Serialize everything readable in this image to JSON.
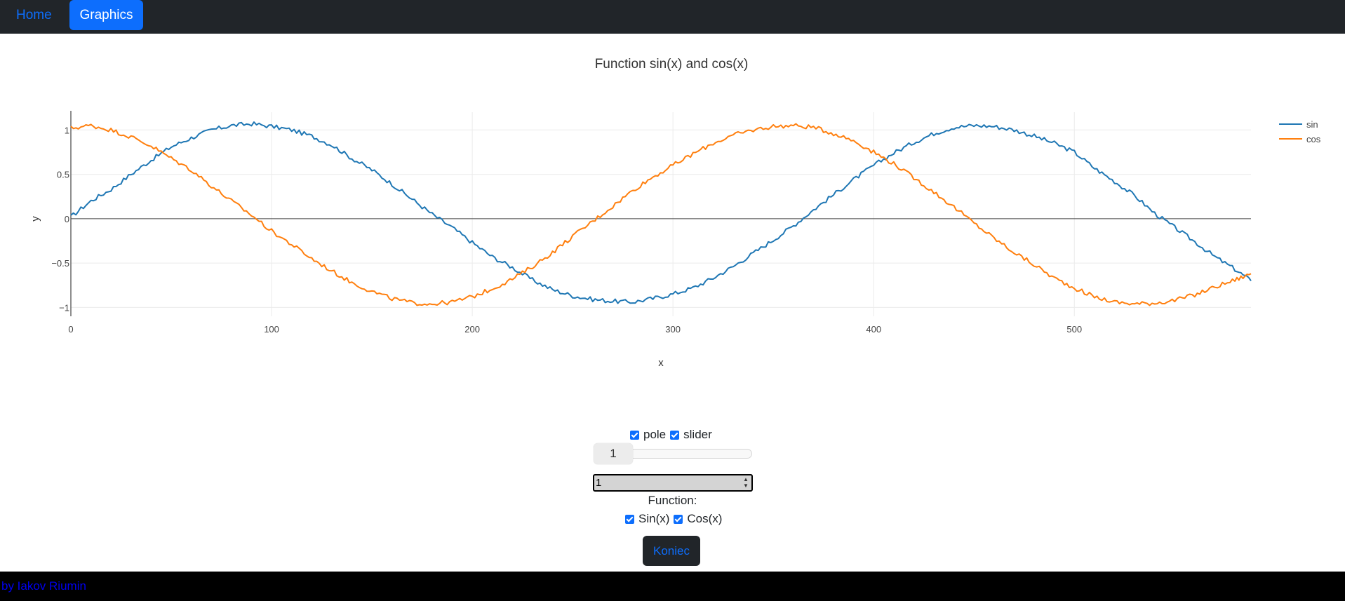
{
  "nav": {
    "home_label": "Home",
    "graphics_label": "Graphics"
  },
  "chart_data": {
    "type": "line",
    "title": "Function sin(x) and cos(x)",
    "xlabel": "x",
    "ylabel": "y",
    "xlim": [
      0,
      588
    ],
    "ylim": [
      -1.1,
      1.2
    ],
    "x_ticks": [
      "0",
      "100",
      "200",
      "300",
      "400",
      "500"
    ],
    "y_ticks": [
      "1",
      "0.5",
      "0",
      "−0.5",
      "−1"
    ],
    "grid": true,
    "legend_position": "top-right",
    "series": [
      {
        "name": "sin",
        "color": "#1f77b4",
        "x": [
          0,
          10,
          20,
          30,
          40,
          50,
          60,
          70,
          80,
          90,
          100,
          110,
          120,
          130,
          140,
          150,
          160,
          170,
          180,
          190,
          200,
          210,
          220,
          230,
          240,
          250,
          260,
          270,
          280,
          290,
          300,
          310,
          320,
          330,
          340,
          350,
          360,
          370,
          380,
          390,
          400,
          410,
          420,
          430,
          440,
          450,
          460,
          470,
          480,
          490,
          500,
          510,
          520,
          530,
          540,
          550,
          560,
          570,
          580,
          588
        ],
        "y": [
          0.02,
          0.2,
          0.33,
          0.5,
          0.66,
          0.81,
          0.91,
          1.0,
          1.05,
          1.07,
          1.04,
          1.0,
          0.93,
          0.83,
          0.68,
          0.55,
          0.39,
          0.22,
          0.05,
          -0.1,
          -0.27,
          -0.43,
          -0.55,
          -0.69,
          -0.8,
          -0.87,
          -0.91,
          -0.93,
          -0.94,
          -0.9,
          -0.85,
          -0.78,
          -0.67,
          -0.54,
          -0.39,
          -0.24,
          -0.08,
          0.1,
          0.27,
          0.44,
          0.6,
          0.74,
          0.86,
          0.96,
          1.03,
          1.05,
          1.04,
          1.0,
          0.93,
          0.85,
          0.75,
          0.57,
          0.42,
          0.26,
          0.06,
          -0.1,
          -0.26,
          -0.43,
          -0.57,
          -0.7
        ]
      },
      {
        "name": "cos",
        "color": "#ff7f0e",
        "x": [
          0,
          10,
          20,
          30,
          40,
          50,
          60,
          70,
          80,
          90,
          100,
          110,
          120,
          130,
          140,
          150,
          160,
          170,
          180,
          190,
          200,
          210,
          220,
          230,
          240,
          250,
          260,
          270,
          280,
          290,
          300,
          310,
          320,
          330,
          340,
          350,
          360,
          370,
          380,
          390,
          400,
          410,
          420,
          430,
          440,
          450,
          460,
          470,
          480,
          490,
          500,
          510,
          520,
          530,
          540,
          550,
          560,
          570,
          580,
          588
        ],
        "y": [
          1.02,
          1.05,
          1.0,
          0.92,
          0.82,
          0.68,
          0.55,
          0.37,
          0.2,
          0.04,
          -0.14,
          -0.29,
          -0.45,
          -0.59,
          -0.72,
          -0.82,
          -0.9,
          -0.95,
          -0.96,
          -0.94,
          -0.88,
          -0.79,
          -0.68,
          -0.54,
          -0.38,
          -0.2,
          -0.03,
          0.14,
          0.32,
          0.47,
          0.6,
          0.73,
          0.85,
          0.94,
          1.0,
          1.04,
          1.05,
          1.03,
          0.96,
          0.88,
          0.75,
          0.62,
          0.46,
          0.3,
          0.13,
          -0.05,
          -0.22,
          -0.38,
          -0.52,
          -0.67,
          -0.78,
          -0.88,
          -0.94,
          -0.96,
          -0.95,
          -0.92,
          -0.86,
          -0.77,
          -0.69,
          -0.62
        ]
      }
    ]
  },
  "controls": {
    "pole_label": "pole",
    "slider_label": "slider",
    "slider_value": "1",
    "number_value": "1",
    "function_label": "Function:",
    "sin_label": "Sin(x)",
    "cos_label": "Cos(x)",
    "button_label": "Koniec"
  },
  "footer": {
    "text": "by Iakov Riumin"
  }
}
